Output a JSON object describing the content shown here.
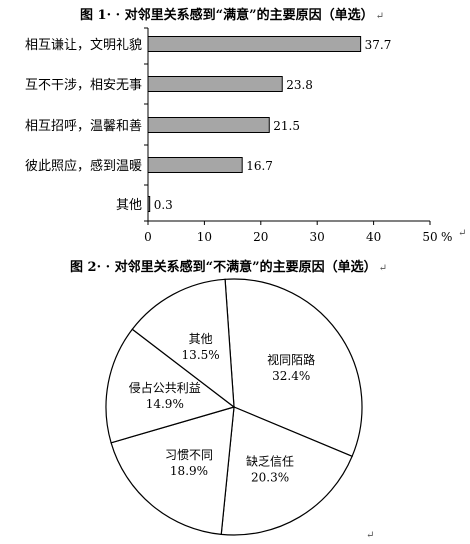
{
  "figure1": {
    "title": "图 1· · 对邻里关系感到“满意”的主要原因（单选）",
    "title_mark": "↵"
  },
  "figure2": {
    "title": "图 2· · 对邻里关系感到“不满意”的主要原因（单选）",
    "title_mark": "↵"
  },
  "paragraph_marks": [
    "↵",
    "↵"
  ],
  "colors": {
    "bar_fill": "#a6a6a6",
    "stroke": "#000000",
    "pie_fill": "#ffffff"
  },
  "chart_data": [
    {
      "type": "bar",
      "orientation": "horizontal",
      "title": "图 1· · 对邻里关系感到“满意”的主要原因（单选）",
      "categories": [
        "相互谦让，文明礼貌",
        "互不干涉，相安无事",
        "相互招呼，温馨和善",
        "彼此照应，感到温暖",
        "其他"
      ],
      "values": [
        37.7,
        23.8,
        21.5,
        16.7,
        0.3
      ],
      "value_labels": [
        "37.7",
        "23.8",
        "21.5",
        "16.7",
        "0.3"
      ],
      "xlim": [
        0,
        50
      ],
      "xticks": [
        "0",
        "10",
        "20",
        "30",
        "40",
        "50"
      ],
      "xunit": "%",
      "grid": false,
      "legend": "none"
    },
    {
      "type": "pie",
      "title": "图 2· · 对邻里关系感到“不满意”的主要原因（单选）",
      "slices": [
        {
          "label": "视同陌路",
          "value": 32.4,
          "value_label": "32.4%"
        },
        {
          "label": "缺乏信任",
          "value": 20.3,
          "value_label": "20.3%"
        },
        {
          "label": "习惯不同",
          "value": 18.9,
          "value_label": "18.9%"
        },
        {
          "label": "侵占公共利益",
          "value": 14.9,
          "value_label": "14.9%"
        },
        {
          "label": "其他",
          "value": 13.5,
          "value_label": "13.5%"
        }
      ],
      "legend": "none"
    }
  ]
}
